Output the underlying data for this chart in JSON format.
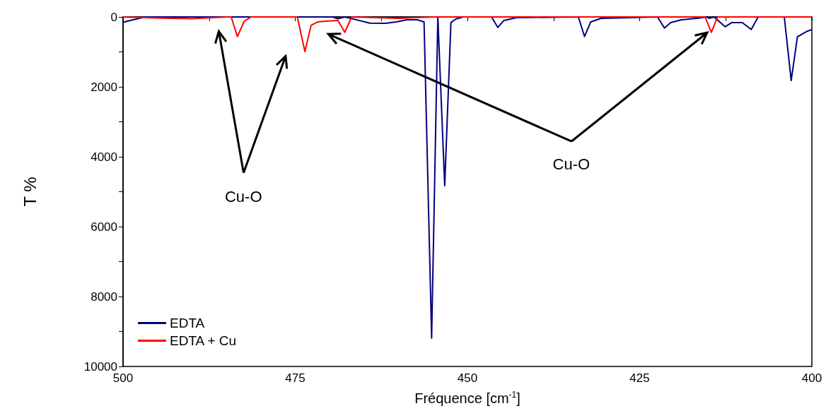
{
  "chart_data": {
    "type": "line",
    "xlabel": "Fréquence [cm$^{-1}$]",
    "ylabel": "T %",
    "xlim": [
      500,
      400
    ],
    "ylim": [
      10000,
      0
    ],
    "xticks": [
      500,
      {
        "value": 487.5,
        "label": null
      },
      475,
      {
        "value": 462.5,
        "label": null
      },
      450,
      {
        "value": 437.5,
        "label": null
      },
      425,
      {
        "value": 412.5,
        "label": null
      },
      400
    ],
    "yticks": [
      0,
      {
        "value": 1000,
        "label": null
      },
      2000,
      {
        "value": 3000,
        "label": null
      },
      4000,
      {
        "value": 5000,
        "label": null
      },
      6000,
      {
        "value": 7000,
        "label": null
      },
      8000,
      {
        "value": 9000,
        "label": null
      },
      10000
    ],
    "grid": false,
    "legend": "bottom left",
    "marker": "none",
    "line_style": "solid",
    "annotations": [
      "Cu-O",
      "Cu-O"
    ],
    "series": [
      {
        "name": "EDTA",
        "color": "#000080",
        "x": [
          500,
          496.8,
          469.6,
          468.8,
          467.8,
          464.2,
          461.9,
          460.3,
          458.8,
          457.3,
          456.3,
          455.2,
          454.3,
          453.3,
          452.4,
          451.7,
          450.6,
          446.5,
          445.6,
          444.7,
          442.9,
          433.9,
          433.0,
          432.1,
          430.6,
          422.4,
          421.4,
          420.5,
          418.9,
          416.3,
          415.3,
          414.9,
          414.2,
          412.6,
          411.6,
          410.1,
          408.8,
          407.8,
          404.0,
          403.0,
          402.1,
          400.8,
          400
        ],
        "values": [
          150,
          0,
          0,
          50,
          0,
          175,
          180,
          140,
          80,
          80,
          140,
          9190,
          0,
          4830,
          160,
          60,
          0,
          0,
          300,
          100,
          20,
          0,
          560,
          140,
          40,
          0,
          320,
          160,
          80,
          30,
          0,
          40,
          0,
          280,
          160,
          160,
          360,
          0,
          0,
          1820,
          570,
          420,
          360
        ]
      },
      {
        "name": "EDTA + Cu",
        "color": "#ff0000",
        "x": [
          500,
          495,
          490,
          485,
          484.3,
          483.4,
          482.4,
          481.4,
          474.7,
          473.6,
          472.7,
          471.7,
          470.6,
          468.8,
          467.8,
          466.8,
          460,
          455,
          415.5,
          414.6,
          413.7,
          400
        ],
        "values": [
          0,
          30,
          50,
          0,
          0,
          560,
          120,
          0,
          0,
          990,
          240,
          140,
          120,
          100,
          440,
          0,
          40,
          0,
          0,
          440,
          0,
          0
        ]
      }
    ]
  }
}
